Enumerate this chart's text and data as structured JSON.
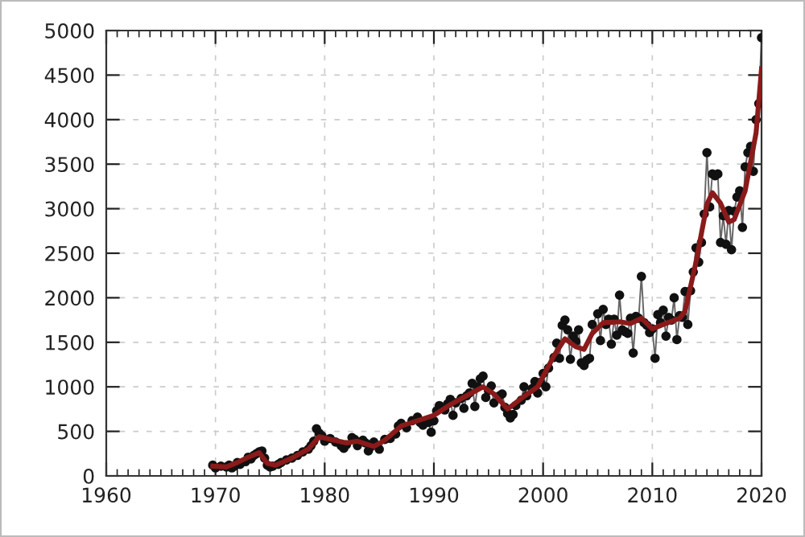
{
  "chart_data": {
    "type": "line",
    "series": [
      {
        "color": "#111111",
        "marker": "circle",
        "x": [
          1969.75,
          1970,
          1970.5,
          1971,
          1971.25,
          1971.5,
          1971.75,
          1972,
          1972.25,
          1972.75,
          1973,
          1973.25,
          1973.5,
          1973.75,
          1974,
          1974.25,
          1974.5,
          1974.75,
          1975,
          1975.25,
          1975.75,
          1976,
          1976.5,
          1977,
          1977.5,
          1978,
          1978.5,
          1978.75,
          1979,
          1979.25,
          1979.5,
          1979.75,
          1980,
          1980.5,
          1981,
          1981.5,
          1981.75,
          1982,
          1982.5,
          1982.75,
          1983,
          1983.5,
          1983.75,
          1984,
          1984.25,
          1984.5,
          1985,
          1985.5,
          1986,
          1986.5,
          1986.75,
          1987,
          1987.5,
          1988,
          1988.5,
          1988.75,
          1989,
          1989.5,
          1989.75,
          1990,
          1990.25,
          1990.5,
          1991,
          1991.25,
          1991.5,
          1991.75,
          1992,
          1992.5,
          1992.75,
          1993,
          1993.25,
          1993.5,
          1993.75,
          1994,
          1994.25,
          1994.5,
          1994.75,
          1995,
          1995.25,
          1995.5,
          1996,
          1996.25,
          1996.5,
          1996.75,
          1997,
          1997.25,
          1997.5,
          1998,
          1998.25,
          1998.5,
          1999,
          1999.25,
          1999.5,
          1999.75,
          2000,
          2000.25,
          2000.5,
          2001,
          2001.25,
          2001.5,
          2001.75,
          2002,
          2002.25,
          2002.5,
          2002.75,
          2003,
          2003.25,
          2003.5,
          2003.75,
          2004,
          2004.25,
          2004.5,
          2005,
          2005.25,
          2005.5,
          2005.75,
          2006,
          2006.25,
          2006.5,
          2006.75,
          2007,
          2007.25,
          2007.5,
          2007.75,
          2008,
          2008.25,
          2008.5,
          2008.75,
          2009,
          2009.25,
          2009.5,
          2009.75,
          2010,
          2010.25,
          2010.5,
          2010.75,
          2011,
          2011.25,
          2011.5,
          2011.75,
          2012,
          2012.25,
          2012.5,
          2012.75,
          2013,
          2013.25,
          2013.5,
          2013.75,
          2014,
          2014.25,
          2014.5,
          2014.75,
          2015,
          2015.25,
          2015.5,
          2015.75,
          2016,
          2016.25,
          2016.5,
          2016.75,
          2017,
          2017.25,
          2017.5,
          2017.75,
          2018,
          2018.25,
          2018.5,
          2018.75,
          2019,
          2019.25,
          2019.5,
          2019.75,
          2020
        ],
        "values": [
          120,
          90,
          110,
          100,
          120,
          90,
          110,
          150,
          130,
          160,
          210,
          190,
          230,
          250,
          270,
          280,
          200,
          120,
          100,
          110,
          130,
          150,
          180,
          200,
          230,
          270,
          300,
          340,
          390,
          530,
          480,
          450,
          390,
          420,
          380,
          340,
          310,
          350,
          430,
          410,
          340,
          400,
          370,
          280,
          330,
          380,
          300,
          410,
          420,
          470,
          560,
          590,
          540,
          620,
          660,
          600,
          570,
          600,
          490,
          620,
          730,
          790,
          740,
          810,
          860,
          680,
          820,
          870,
          760,
          900,
          930,
          1040,
          780,
          1000,
          1090,
          1120,
          880,
          960,
          1010,
          820,
          900,
          920,
          770,
          700,
          650,
          690,
          790,
          850,
          1000,
          900,
          980,
          1060,
          930,
          1050,
          1150,
          1000,
          1210,
          1330,
          1490,
          1320,
          1690,
          1750,
          1640,
          1310,
          1570,
          1510,
          1640,
          1270,
          1240,
          1300,
          1320,
          1700,
          1820,
          1520,
          1870,
          1700,
          1760,
          1480,
          1760,
          1580,
          2030,
          1640,
          1620,
          1600,
          1770,
          1380,
          1790,
          1770,
          2240,
          1720,
          1690,
          1610,
          1650,
          1320,
          1810,
          1720,
          1860,
          1570,
          1780,
          1750,
          2000,
          1530,
          1800,
          1780,
          2070,
          1700,
          2080,
          2290,
          2560,
          2400,
          2620,
          2940,
          3630,
          3020,
          3390,
          3370,
          3390,
          2620,
          2920,
          2600,
          2980,
          2540,
          2970,
          3130,
          3200,
          2790,
          3470,
          3630,
          3700,
          3420,
          4000,
          4180,
          4920
        ]
      },
      {
        "color": "#8b1a1a",
        "marker": "none",
        "x": [
          1969.75,
          1971,
          1972,
          1973,
          1974,
          1974.75,
          1975.5,
          1977,
          1978.5,
          1979.5,
          1980.5,
          1982,
          1983,
          1984.5,
          1985.5,
          1987,
          1988.5,
          1990,
          1991.5,
          1993,
          1994.5,
          1995.5,
          1996.75,
          1998,
          1999.5,
          2001,
          2002,
          2003,
          2003.75,
          2004.5,
          2005.5,
          2007,
          2008,
          2009,
          2010,
          2011,
          2012.5,
          2013,
          2014,
          2015,
          2015.5,
          2016.25,
          2017,
          2017.5,
          2018.5,
          2019.5,
          2020
        ],
        "values": [
          110,
          100,
          150,
          210,
          260,
          140,
          120,
          200,
          300,
          440,
          410,
          370,
          390,
          330,
          400,
          560,
          620,
          680,
          800,
          900,
          1000,
          920,
          750,
          870,
          1000,
          1350,
          1540,
          1450,
          1420,
          1600,
          1720,
          1730,
          1710,
          1770,
          1650,
          1700,
          1770,
          1850,
          2400,
          3050,
          3180,
          3060,
          2850,
          2880,
          3200,
          3850,
          4570
        ]
      }
    ],
    "xlim": [
      1960,
      2020
    ],
    "xticks": [
      1960,
      1970,
      1980,
      1990,
      2000,
      2010,
      2020
    ],
    "ylim": [
      0,
      5000
    ],
    "yticks": [
      0,
      500,
      1000,
      1500,
      2000,
      2500,
      3000,
      3500,
      4000,
      4500,
      5000
    ],
    "grid": true
  }
}
